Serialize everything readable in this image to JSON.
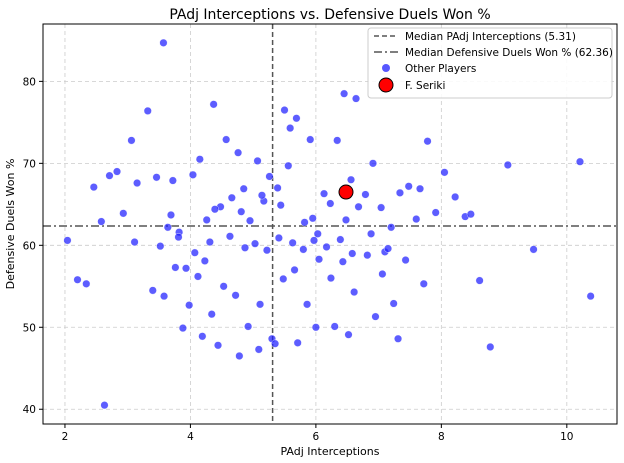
{
  "chart_data": {
    "type": "scatter",
    "title": "PAdj Interceptions vs. Defensive Duels Won %",
    "xlabel": "PAdj Interceptions",
    "ylabel": "Defensive Duels Won %",
    "xlim": [
      1.65,
      10.8
    ],
    "ylim": [
      38.2,
      87.0
    ],
    "xticks": [
      2,
      4,
      6,
      8,
      10
    ],
    "yticks": [
      40,
      50,
      60,
      70,
      80
    ],
    "grid": true,
    "legend_position": "top-right",
    "reference_lines": [
      {
        "orientation": "vertical",
        "value": 5.31,
        "label": "Median PAdj Interceptions (5.31)",
        "style": "dashed",
        "color": "#555555"
      },
      {
        "orientation": "horizontal",
        "value": 62.36,
        "label": "Median Defensive Duels Won % (62.36)",
        "style": "dashdot",
        "color": "#555555"
      }
    ],
    "series": [
      {
        "name": "Other Players",
        "color": "#1f1fff",
        "x": [
          2.04,
          2.2,
          2.34,
          2.46,
          2.58,
          2.71,
          2.83,
          2.93,
          3.06,
          3.15,
          3.32,
          3.46,
          3.57,
          3.64,
          3.72,
          3.82,
          3.93,
          4.04,
          4.15,
          4.26,
          4.37,
          4.48,
          4.57,
          4.66,
          4.76,
          4.85,
          4.95,
          5.07,
          5.17,
          5.26,
          5.39,
          5.5,
          5.59,
          5.69,
          5.82,
          5.91,
          6.03,
          6.13,
          6.23,
          6.34,
          6.45,
          6.56,
          6.64,
          6.79,
          6.91,
          7.04,
          7.2,
          7.34,
          7.48,
          7.6,
          7.78,
          7.91,
          8.05,
          8.22,
          8.38,
          8.61,
          8.78,
          9.06,
          9.47,
          10.21,
          10.38,
          3.4,
          3.58,
          3.76,
          3.98,
          4.12,
          4.34,
          4.53,
          4.72,
          4.92,
          5.11,
          5.3,
          5.48,
          5.66,
          5.86,
          6.05,
          6.24,
          6.43,
          6.61,
          6.82,
          7.06,
          7.24,
          3.52,
          3.81,
          4.07,
          4.31,
          4.63,
          4.87,
          5.03,
          5.22,
          5.41,
          5.63,
          5.8,
          5.97,
          6.17,
          6.39,
          6.58,
          6.88,
          7.1,
          7.43,
          7.72,
          3.88,
          4.19,
          4.44,
          4.78,
          5.09,
          5.35,
          5.71,
          6.0,
          6.3,
          6.52,
          6.95,
          7.31,
          2.63,
          3.11,
          3.69,
          4.23,
          4.81,
          5.44,
          5.95,
          6.48,
          7.15,
          7.66,
          8.47,
          4.39,
          5.56,
          6.68,
          5.14
        ],
        "y": [
          60.6,
          55.8,
          55.3,
          67.1,
          62.9,
          68.5,
          69.0,
          63.9,
          72.8,
          67.6,
          76.4,
          68.3,
          84.7,
          62.2,
          67.9,
          61.6,
          57.2,
          68.6,
          70.5,
          63.1,
          77.2,
          64.7,
          72.9,
          65.8,
          71.3,
          66.9,
          63.0,
          70.3,
          65.4,
          68.4,
          67.0,
          76.5,
          74.3,
          75.5,
          62.8,
          72.9,
          61.4,
          66.3,
          65.1,
          72.8,
          78.5,
          68.0,
          77.9,
          66.2,
          70.0,
          64.6,
          62.2,
          66.4,
          67.2,
          63.2,
          72.7,
          64.0,
          68.9,
          65.9,
          63.5,
          55.7,
          47.6,
          69.8,
          59.5,
          70.2,
          53.8,
          54.5,
          53.8,
          57.3,
          52.7,
          56.2,
          51.6,
          55.0,
          53.9,
          50.1,
          52.8,
          48.6,
          55.9,
          57.0,
          52.8,
          58.3,
          56.0,
          58.0,
          54.3,
          58.8,
          56.5,
          52.9,
          59.9,
          61.0,
          59.1,
          60.4,
          61.1,
          59.7,
          60.2,
          59.4,
          60.9,
          60.3,
          59.5,
          60.6,
          59.8,
          60.7,
          59.0,
          61.4,
          59.2,
          58.2,
          55.3,
          49.9,
          48.9,
          47.8,
          46.5,
          47.3,
          48.0,
          48.1,
          50.0,
          50.1,
          49.1,
          51.3,
          48.6,
          40.5,
          60.4,
          63.7,
          58.1,
          64.1,
          64.9,
          63.3,
          63.1,
          59.6,
          66.9,
          63.8,
          64.4,
          69.7,
          64.7,
          66.1
        ]
      },
      {
        "name": "F. Seriki",
        "color": "#ff0000",
        "x": [
          6.48
        ],
        "y": [
          66.5
        ]
      }
    ]
  }
}
